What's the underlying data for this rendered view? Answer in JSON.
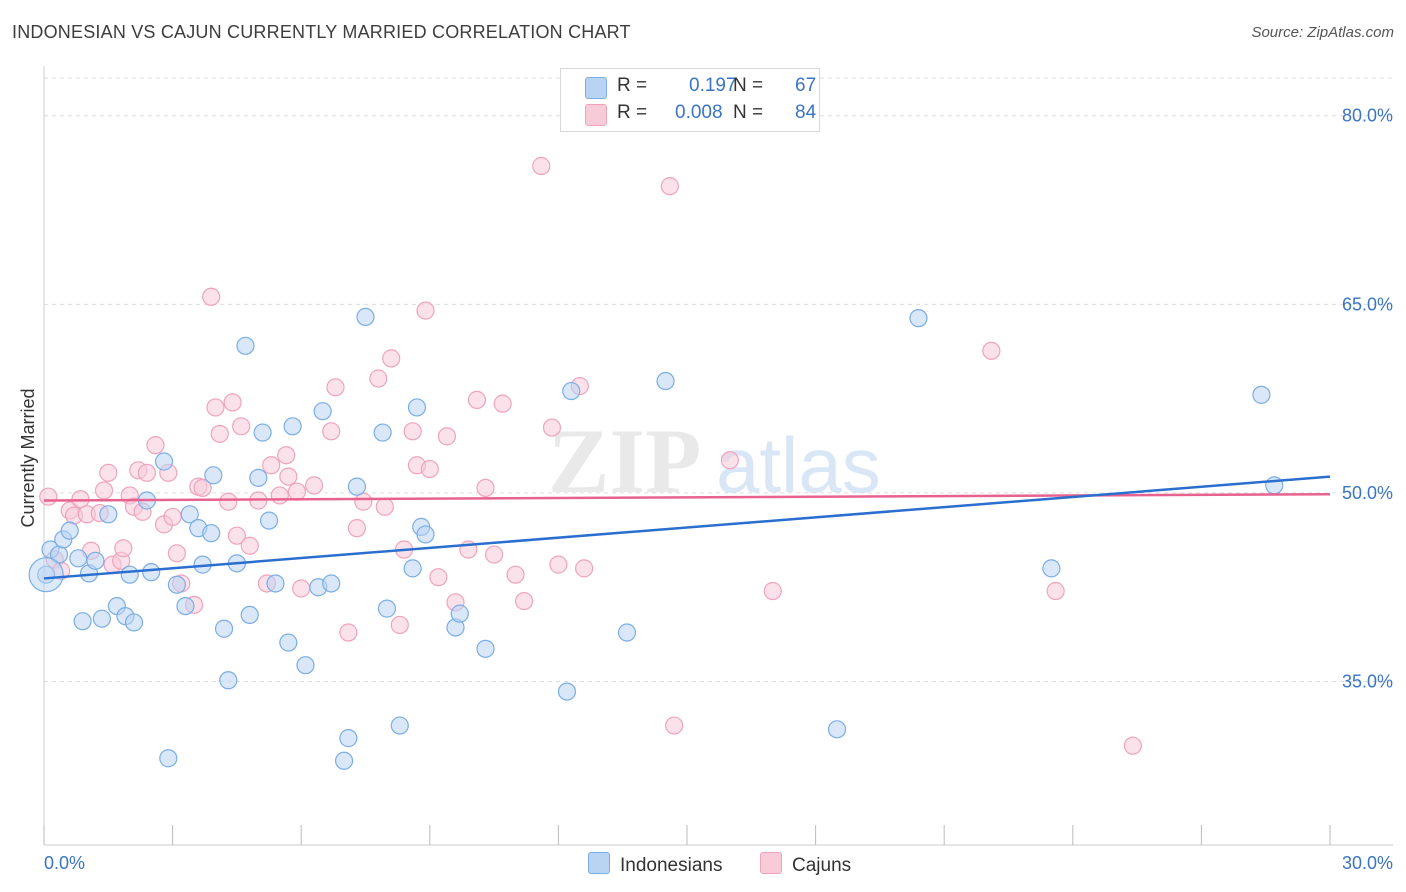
{
  "title": "INDONESIAN VS CAJUN CURRENTLY MARRIED CORRELATION CHART",
  "source": "Source: ZipAtlas.com",
  "colors": {
    "blue": "#7aaee6",
    "blue_fill": "#b9d3f2",
    "blue_line": "#2a6fd0",
    "pink": "#f0a3bc",
    "pink_fill": "#f8cbd9",
    "pink_line": "#e8628f",
    "axis_text": "#3a74c4",
    "grid": "#dddddd"
  },
  "legend": {
    "rows": [
      {
        "r_label": "R =",
        "r_value": "0.197",
        "n_label": "N =",
        "n_value": "67",
        "color": "#b9d3f2"
      },
      {
        "r_label": "R =",
        "r_value": "0.008",
        "n_label": "N =",
        "n_value": "84",
        "color": "#f8cbd9"
      }
    ]
  },
  "bottom_legend": [
    "Indonesians",
    "Cajuns"
  ],
  "watermark": {
    "zip": "ZIP",
    "atlas": "atlas"
  },
  "chart_data": {
    "type": "scatter",
    "title": "INDONESIAN VS CAJUN CURRENTLY MARRIED CORRELATION CHART",
    "xlabel": "",
    "ylabel": "Currently Married",
    "xlim": [
      0,
      30
    ],
    "ylim": [
      22,
      83
    ],
    "x_tick_labels": [
      "0.0%",
      "30.0%"
    ],
    "y_ticks": [
      35,
      50,
      65,
      80
    ],
    "y_tick_labels": [
      "35.0%",
      "50.0%",
      "65.0%",
      "80.0%"
    ],
    "grid": true,
    "legend_position": "top-center",
    "series": [
      {
        "name": "Indonesians",
        "color": "#7aaee6",
        "trend": [
          [
            0,
            43.2
          ],
          [
            30,
            51.3
          ]
        ],
        "points": [
          [
            0.05,
            43.5
          ],
          [
            0.15,
            45.5
          ],
          [
            0.35,
            45.1
          ],
          [
            0.45,
            46.3
          ],
          [
            0.6,
            47.0
          ],
          [
            0.8,
            44.8
          ],
          [
            0.9,
            39.8
          ],
          [
            1.05,
            43.6
          ],
          [
            1.2,
            44.6
          ],
          [
            1.35,
            40.0
          ],
          [
            1.5,
            48.3
          ],
          [
            1.7,
            41.0
          ],
          [
            1.9,
            40.2
          ],
          [
            2.0,
            43.5
          ],
          [
            2.1,
            39.7
          ],
          [
            2.4,
            49.4
          ],
          [
            2.5,
            43.7
          ],
          [
            2.8,
            52.5
          ],
          [
            2.9,
            28.9
          ],
          [
            3.1,
            42.7
          ],
          [
            3.3,
            41.0
          ],
          [
            3.4,
            48.3
          ],
          [
            3.6,
            47.2
          ],
          [
            3.7,
            44.3
          ],
          [
            3.9,
            46.8
          ],
          [
            3.95,
            51.4
          ],
          [
            4.2,
            39.2
          ],
          [
            4.3,
            35.1
          ],
          [
            4.5,
            44.4
          ],
          [
            4.7,
            61.7
          ],
          [
            4.8,
            40.3
          ],
          [
            5.0,
            51.2
          ],
          [
            5.1,
            54.8
          ],
          [
            5.25,
            47.8
          ],
          [
            5.4,
            42.8
          ],
          [
            5.7,
            38.1
          ],
          [
            5.8,
            55.3
          ],
          [
            6.1,
            36.3
          ],
          [
            6.4,
            42.5
          ],
          [
            6.5,
            56.5
          ],
          [
            6.7,
            42.8
          ],
          [
            7.0,
            28.7
          ],
          [
            7.1,
            30.5
          ],
          [
            7.3,
            50.5
          ],
          [
            7.5,
            64.0
          ],
          [
            7.9,
            54.8
          ],
          [
            8.0,
            40.8
          ],
          [
            8.3,
            31.5
          ],
          [
            8.6,
            44.0
          ],
          [
            8.7,
            56.8
          ],
          [
            8.8,
            47.3
          ],
          [
            8.9,
            46.7
          ],
          [
            9.6,
            39.3
          ],
          [
            9.7,
            40.4
          ],
          [
            10.3,
            37.6
          ],
          [
            12.2,
            34.2
          ],
          [
            12.3,
            58.1
          ],
          [
            13.6,
            38.9
          ],
          [
            14.5,
            58.9
          ],
          [
            18.5,
            31.2
          ],
          [
            20.4,
            63.9
          ],
          [
            23.5,
            44.0
          ],
          [
            28.4,
            57.8
          ],
          [
            28.7,
            50.6
          ]
        ]
      },
      {
        "name": "Cajuns",
        "color": "#f0a3bc",
        "trend": [
          [
            0,
            49.4
          ],
          [
            30,
            49.9
          ]
        ],
        "points": [
          [
            0.1,
            49.7
          ],
          [
            0.25,
            44.7
          ],
          [
            0.4,
            43.8
          ],
          [
            0.6,
            48.6
          ],
          [
            0.7,
            48.2
          ],
          [
            0.85,
            49.5
          ],
          [
            1.0,
            48.3
          ],
          [
            1.1,
            45.4
          ],
          [
            1.3,
            48.4
          ],
          [
            1.4,
            50.2
          ],
          [
            1.5,
            51.6
          ],
          [
            1.6,
            44.3
          ],
          [
            1.8,
            44.6
          ],
          [
            1.85,
            45.6
          ],
          [
            2.0,
            49.8
          ],
          [
            2.1,
            48.9
          ],
          [
            2.2,
            51.8
          ],
          [
            2.3,
            48.5
          ],
          [
            2.4,
            51.6
          ],
          [
            2.6,
            53.8
          ],
          [
            2.8,
            47.5
          ],
          [
            2.9,
            51.6
          ],
          [
            3.0,
            48.1
          ],
          [
            3.1,
            45.2
          ],
          [
            3.2,
            42.8
          ],
          [
            3.5,
            41.1
          ],
          [
            3.6,
            50.5
          ],
          [
            3.7,
            50.4
          ],
          [
            3.9,
            65.6
          ],
          [
            4.0,
            56.8
          ],
          [
            4.1,
            54.7
          ],
          [
            4.3,
            49.3
          ],
          [
            4.4,
            57.2
          ],
          [
            4.5,
            46.6
          ],
          [
            4.6,
            55.3
          ],
          [
            4.8,
            45.8
          ],
          [
            5.0,
            49.4
          ],
          [
            5.2,
            42.8
          ],
          [
            5.3,
            52.2
          ],
          [
            5.5,
            49.8
          ],
          [
            5.65,
            53.0
          ],
          [
            5.7,
            51.3
          ],
          [
            5.9,
            50.1
          ],
          [
            6.0,
            42.4
          ],
          [
            6.3,
            50.6
          ],
          [
            6.7,
            54.9
          ],
          [
            6.8,
            58.4
          ],
          [
            7.1,
            38.9
          ],
          [
            7.3,
            47.2
          ],
          [
            7.45,
            49.3
          ],
          [
            7.8,
            59.1
          ],
          [
            7.95,
            48.9
          ],
          [
            8.1,
            60.7
          ],
          [
            8.3,
            39.5
          ],
          [
            8.4,
            45.5
          ],
          [
            8.6,
            54.9
          ],
          [
            8.7,
            52.2
          ],
          [
            8.9,
            64.5
          ],
          [
            9.0,
            51.9
          ],
          [
            9.2,
            43.3
          ],
          [
            9.4,
            54.5
          ],
          [
            9.6,
            41.3
          ],
          [
            9.9,
            45.5
          ],
          [
            10.1,
            57.4
          ],
          [
            10.3,
            50.4
          ],
          [
            10.5,
            45.1
          ],
          [
            10.7,
            57.1
          ],
          [
            11.0,
            43.5
          ],
          [
            11.2,
            41.4
          ],
          [
            11.6,
            76.0
          ],
          [
            11.85,
            55.2
          ],
          [
            12.0,
            44.3
          ],
          [
            12.5,
            58.5
          ],
          [
            12.6,
            44.0
          ],
          [
            14.6,
            74.4
          ],
          [
            14.7,
            31.5
          ],
          [
            16.0,
            52.6
          ],
          [
            17.0,
            42.2
          ],
          [
            22.1,
            61.3
          ],
          [
            23.6,
            42.2
          ],
          [
            25.4,
            29.9
          ]
        ]
      }
    ]
  }
}
